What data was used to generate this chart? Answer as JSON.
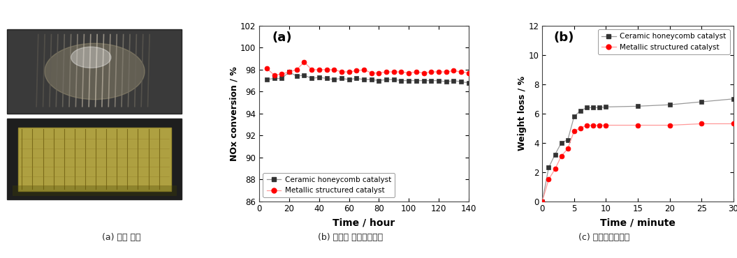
{
  "chart_a": {
    "label": "(a)",
    "ceramic_x": [
      5,
      10,
      15,
      20,
      25,
      30,
      35,
      40,
      45,
      50,
      55,
      60,
      65,
      70,
      75,
      80,
      85,
      90,
      95,
      100,
      105,
      110,
      115,
      120,
      125,
      130,
      135,
      140
    ],
    "ceramic_y": [
      97.1,
      97.2,
      97.2,
      97.8,
      97.4,
      97.5,
      97.2,
      97.3,
      97.2,
      97.1,
      97.2,
      97.1,
      97.2,
      97.1,
      97.1,
      97.0,
      97.1,
      97.1,
      97.0,
      97.0,
      97.0,
      97.0,
      97.0,
      97.0,
      96.9,
      97.0,
      96.9,
      96.8
    ],
    "metallic_x": [
      5,
      10,
      15,
      20,
      25,
      30,
      35,
      40,
      45,
      50,
      55,
      60,
      65,
      70,
      75,
      80,
      85,
      90,
      95,
      100,
      105,
      110,
      115,
      120,
      125,
      130,
      135,
      140
    ],
    "metallic_y": [
      98.1,
      97.5,
      97.6,
      97.8,
      98.0,
      98.7,
      98.0,
      98.0,
      98.0,
      98.0,
      97.8,
      97.8,
      97.9,
      98.0,
      97.7,
      97.7,
      97.8,
      97.8,
      97.8,
      97.7,
      97.8,
      97.7,
      97.8,
      97.8,
      97.8,
      97.9,
      97.8,
      97.7
    ],
    "xlabel": "Time / hour",
    "ylabel": "NOx conversion / %",
    "ylim": [
      86,
      102
    ],
    "xlim": [
      0,
      140
    ],
    "yticks": [
      86,
      88,
      90,
      92,
      94,
      96,
      98,
      100,
      102
    ],
    "xticks": [
      0,
      20,
      40,
      60,
      80,
      100,
      120,
      140
    ],
    "ceramic_color": "#333333",
    "metallic_color": "#ff0000",
    "line_color_ceramic": "#999999",
    "line_color_metallic": "#ff9999"
  },
  "chart_b": {
    "label": "(b)",
    "ceramic_x": [
      0,
      1,
      2,
      3,
      4,
      5,
      6,
      7,
      8,
      9,
      10,
      15,
      20,
      25,
      30
    ],
    "ceramic_y": [
      0.0,
      2.3,
      3.2,
      4.0,
      4.2,
      5.8,
      6.2,
      6.4,
      6.4,
      6.4,
      6.45,
      6.5,
      6.6,
      6.8,
      7.0
    ],
    "metallic_x": [
      0,
      1,
      2,
      3,
      4,
      5,
      6,
      7,
      8,
      9,
      10,
      15,
      20,
      25,
      30
    ],
    "metallic_y": [
      0.0,
      1.5,
      2.2,
      3.1,
      3.6,
      4.8,
      5.0,
      5.2,
      5.2,
      5.2,
      5.2,
      5.2,
      5.2,
      5.3,
      5.3
    ],
    "xlabel": "Time / minute",
    "ylabel": "Weight loss / %",
    "ylim": [
      0,
      12
    ],
    "xlim": [
      0,
      30
    ],
    "yticks": [
      0,
      2,
      4,
      6,
      8,
      10,
      12
    ],
    "xticks": [
      0,
      5,
      10,
      15,
      20,
      25,
      30
    ],
    "ceramic_color": "#333333",
    "metallic_color": "#ff0000",
    "line_color_ceramic": "#999999",
    "line_color_metallic": "#ff9999"
  },
  "legend_ceramic": "Ceramic honeycomb catalyst",
  "legend_metallic": "Metallic structured catalyst",
  "caption_a": "(a) 금속 촉매",
  "caption_b": "(b) 장시간 성능평가결과",
  "caption_c": "(c) 초음파시험결과",
  "bg_color": "#ffffff"
}
